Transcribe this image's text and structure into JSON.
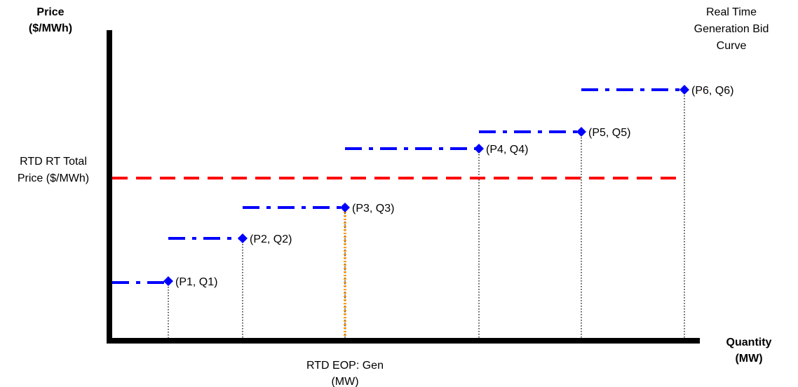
{
  "chart_data": {
    "type": "line",
    "title": "",
    "ylabel": [
      "Price",
      "($/MWh)"
    ],
    "xlabel": [
      "Quantity",
      "(MW)"
    ],
    "series": [
      {
        "name": "Real Time Generation Bid Curve",
        "legend_lines": [
          "Real Time",
          "Generation Bid",
          "Curve"
        ],
        "color": "#0000ff",
        "style": "dash-dot step",
        "points": [
          {
            "label": "(P1, Q1)",
            "x": 1,
            "y": 1
          },
          {
            "label": "(P2, Q2)",
            "x": 2,
            "y": 2
          },
          {
            "label": "(P3, Q3)",
            "x": 3,
            "y": 3
          },
          {
            "label": "(P4, Q4)",
            "x": 4,
            "y": 4
          },
          {
            "label": "(P5, Q5)",
            "x": 5,
            "y": 5
          },
          {
            "label": "(P6, Q6)",
            "x": 6,
            "y": 6
          }
        ]
      }
    ],
    "reference_lines": [
      {
        "kind": "horizontal",
        "label": [
          "RTD RT Total",
          "Price ($/MWh)"
        ],
        "color": "#ff0000",
        "style": "dashed",
        "y": 3.6
      },
      {
        "kind": "vertical",
        "label": [
          "RTD EOP: Gen",
          "(MW)"
        ],
        "color": "#ff9900",
        "style": "dotted",
        "x": 3
      }
    ],
    "grid": false
  }
}
